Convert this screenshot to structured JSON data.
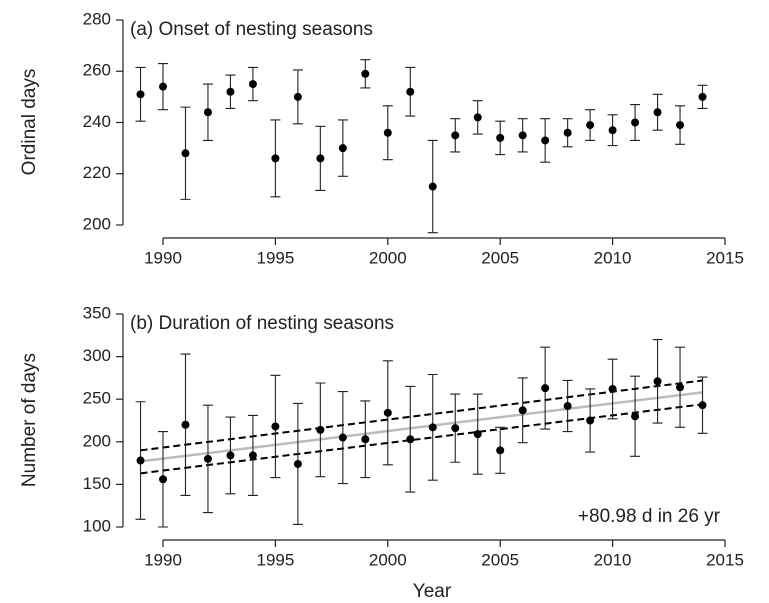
{
  "chart_data": [
    {
      "type": "scatter",
      "title": "(a) Onset of nesting seasons",
      "ylabel": "Ordinal days",
      "color": "#000000",
      "x": [
        1989,
        1990,
        1991,
        1992,
        1993,
        1994,
        1995,
        1996,
        1997,
        1998,
        1999,
        2000,
        2001,
        2002,
        2003,
        2004,
        2005,
        2006,
        2007,
        2008,
        2009,
        2010,
        2011,
        2012,
        2013,
        2014
      ],
      "values": [
        251,
        254,
        228,
        244,
        252,
        255,
        226,
        250,
        226,
        230,
        259,
        236,
        252,
        215,
        235,
        242,
        234,
        235,
        233,
        236,
        239,
        237,
        240,
        244,
        239,
        250
      ],
      "errors": [
        10.5,
        9,
        18,
        11,
        6.5,
        6.5,
        15,
        10.5,
        12.5,
        11,
        5.5,
        10.5,
        9.5,
        18,
        6.5,
        6.5,
        6.5,
        6.5,
        8.5,
        5.5,
        6,
        6,
        7,
        7,
        7.5,
        4.5
      ],
      "xlim": [
        1990,
        2015
      ],
      "xticks": [
        1990,
        1995,
        2000,
        2005,
        2010,
        2015
      ],
      "ylim": [
        200,
        280
      ],
      "yticks": [
        200,
        220,
        240,
        260,
        280
      ]
    },
    {
      "type": "scatter",
      "title": "(b) Duration of nesting seasons",
      "ylabel": "Number of days",
      "xlabel": "Year",
      "color": "#000000",
      "annotation": "+80.98 d in 26 yr",
      "x": [
        1989,
        1990,
        1991,
        1992,
        1993,
        1994,
        1995,
        1996,
        1997,
        1998,
        1999,
        2000,
        2001,
        2002,
        2003,
        2004,
        2005,
        2006,
        2007,
        2008,
        2009,
        2010,
        2011,
        2012,
        2013,
        2014
      ],
      "values": [
        178,
        156,
        220,
        180,
        184,
        184,
        218,
        174,
        214,
        205,
        203,
        234,
        203,
        217,
        216,
        209,
        190,
        237,
        263,
        242,
        225,
        262,
        230,
        271,
        264,
        243
      ],
      "errors": [
        69,
        56,
        83,
        63,
        45,
        47,
        60,
        71,
        55,
        54,
        45,
        61,
        62,
        62,
        40,
        47,
        27,
        38,
        48,
        30,
        37,
        35,
        47,
        49,
        47,
        33
      ],
      "lines": [
        {
          "x": [
            1989,
            2014
          ],
          "values": [
            177,
            258
          ],
          "color": "#bbbbbb",
          "dashed": false
        },
        {
          "x": [
            1989,
            2014
          ],
          "values": [
            190,
            272
          ],
          "color": "#000000",
          "dashed": true
        },
        {
          "x": [
            1989,
            2014
          ],
          "values": [
            163,
            244
          ],
          "color": "#000000",
          "dashed": true
        }
      ],
      "xlim": [
        1990,
        2015
      ],
      "xticks": [
        1990,
        1995,
        2000,
        2005,
        2010,
        2015
      ],
      "ylim": [
        100,
        350
      ],
      "yticks": [
        100,
        150,
        200,
        250,
        300,
        350
      ]
    }
  ]
}
